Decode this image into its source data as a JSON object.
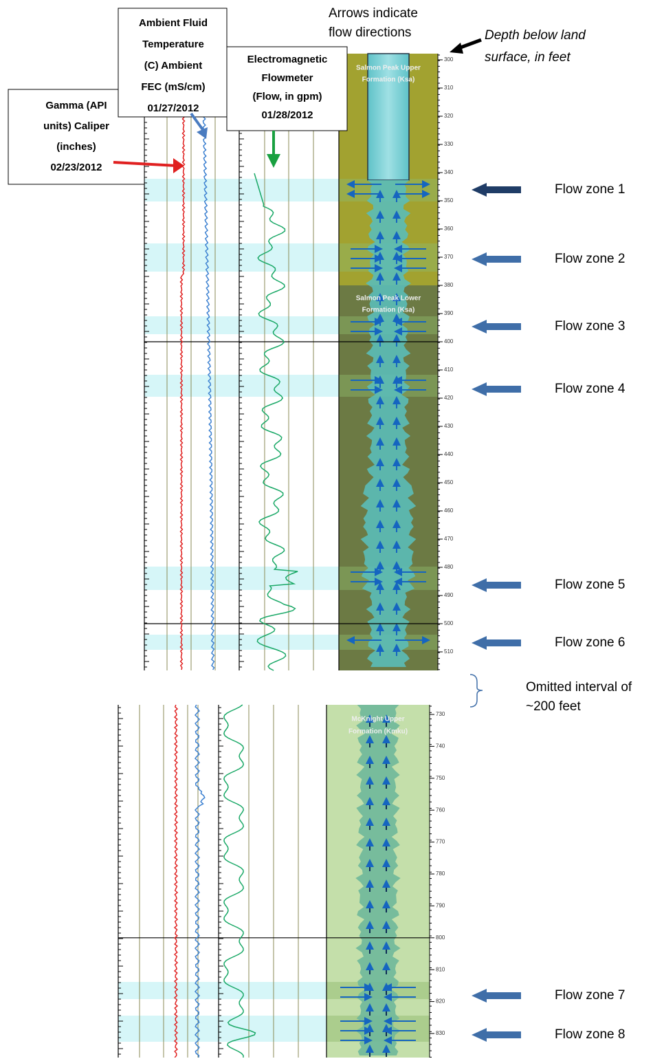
{
  "header": {
    "arrows_note": [
      "Arrows indicate",
      "flow directions"
    ],
    "depth_label": [
      "Depth below land",
      "surface, in feet"
    ],
    "gamma_box": [
      "Gamma (API",
      "units) Caliper",
      "(inches)",
      "02/23/2012"
    ],
    "ambient_box": [
      "Ambient Fluid",
      "Temperature",
      "(C) Ambient",
      "FEC (mS/cm)",
      "01/27/2012"
    ],
    "em_box": [
      "Electromagnetic",
      "Flowmeter",
      "(Flow, in gpm)",
      "01/28/2012"
    ]
  },
  "depth_ticks_upper": [
    300,
    310,
    320,
    330,
    340,
    350,
    360,
    370,
    380,
    390,
    400,
    410,
    420,
    430,
    440,
    450,
    460,
    470,
    480,
    490,
    500,
    510
  ],
  "depth_ticks_lower": [
    730,
    740,
    750,
    760,
    770,
    780,
    790,
    800,
    810,
    820,
    830
  ],
  "formations": [
    [
      "Salmon Peak Upper",
      "Formation (Ksa)"
    ],
    [
      "Salmon Peak Lower",
      "Formation (Ksa)"
    ],
    [
      "McKnight Upper",
      "Formation (Kmku)"
    ]
  ],
  "flow_zones": [
    "Flow zone 1",
    "Flow zone 2",
    "Flow zone 3",
    "Flow zone 4",
    "Flow zone 5",
    "Flow zone 6",
    "Flow zone 7",
    "Flow zone 8"
  ],
  "omitted_note": [
    "Omitted interval of",
    "~200 feet"
  ]
}
